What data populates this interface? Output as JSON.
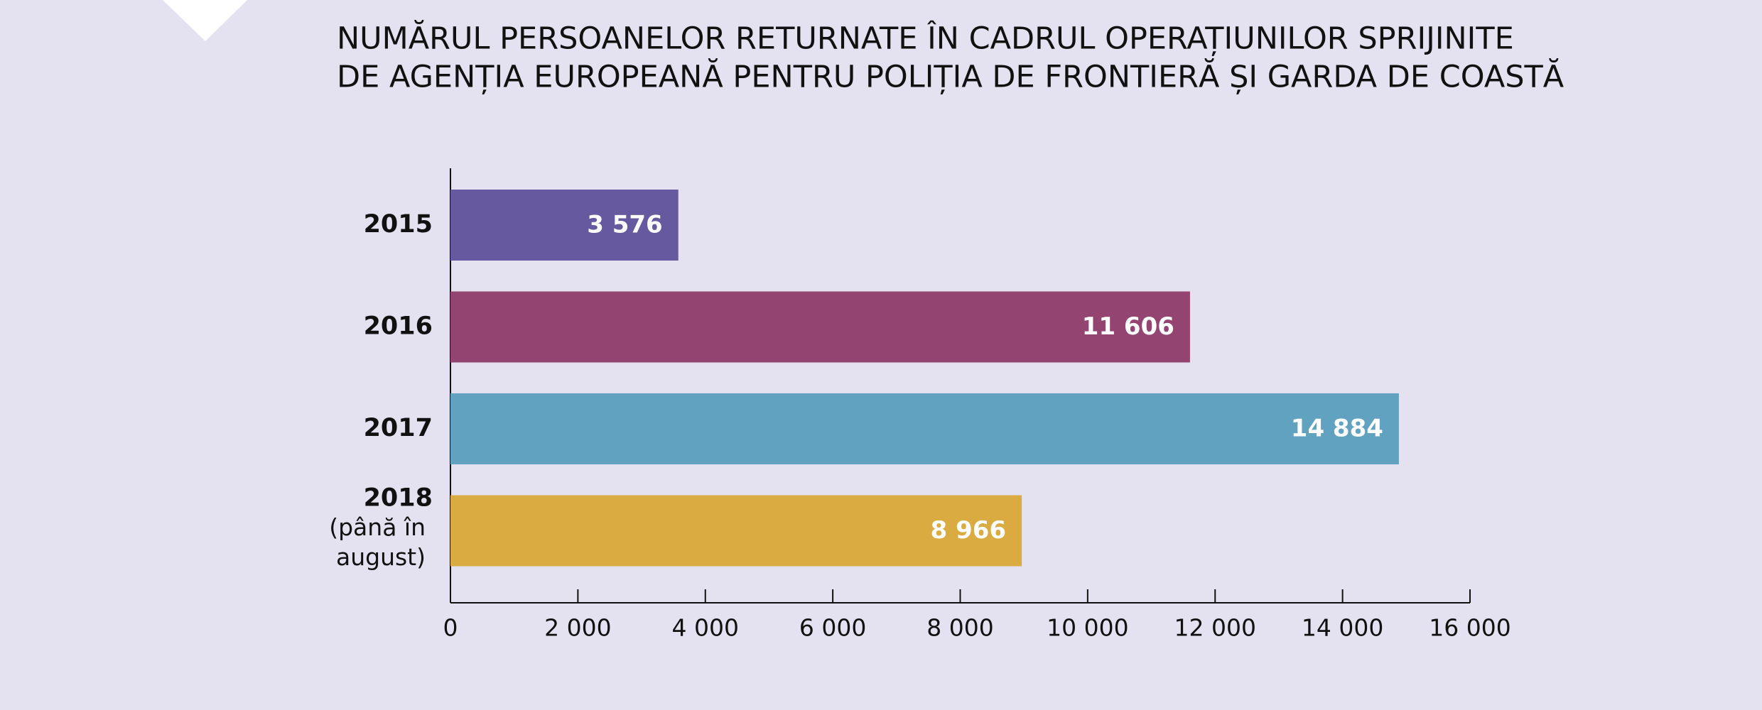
{
  "chart_data": {
    "type": "hbar",
    "title": [
      "NUMĂRUL PERSOANELOR RETURNATE ÎN CADRUL OPERAȚIUNILOR SPRIJINITE",
      "DE AGENȚIA EUROPEANĂ PENTRU POLIȚIA DE FRONTIERĂ ȘI GARDA DE COASTĂ"
    ],
    "categories": [
      "2015",
      "2016",
      "2017",
      "2018"
    ],
    "category_note": {
      "index": 3,
      "lines": [
        "(până în",
        "august)"
      ]
    },
    "values": [
      3576,
      11606,
      14884,
      8966
    ],
    "value_labels": [
      "3 576",
      "11 606",
      "14 884",
      "8 966"
    ],
    "colors": [
      "#6659a0",
      "#944470",
      "#61a2c0",
      "#d9ab41"
    ],
    "xlim": [
      0,
      16000
    ],
    "xticks": [
      0,
      {
        "value": 2000,
        "label": "2 000"
      },
      {
        "value": 4000,
        "label": "4 000"
      },
      {
        "value": 6000,
        "label": "6 000"
      },
      {
        "value": 8000,
        "label": "8 000"
      },
      {
        "value": 10000,
        "label": "10 000"
      },
      {
        "value": 12000,
        "label": "12 000"
      },
      {
        "value": 14000,
        "label": "14 000"
      },
      {
        "value": 16000,
        "label": "16 000"
      }
    ]
  }
}
